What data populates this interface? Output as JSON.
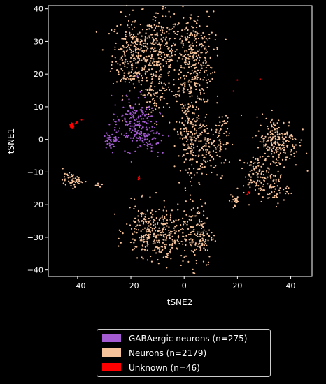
{
  "chart_data": {
    "type": "scatter",
    "xlabel": "tSNE2",
    "ylabel": "tSNE1",
    "xlim": [
      -51,
      48
    ],
    "ylim": [
      -42,
      41
    ],
    "x_ticks": [
      -40,
      -20,
      0,
      20,
      40
    ],
    "y_ticks": [
      -40,
      -30,
      -20,
      -10,
      0,
      10,
      20,
      30,
      40
    ],
    "grid": false,
    "legend_position": "bottom-center",
    "background": "#000000",
    "series": [
      {
        "name": "GABAergic neurons (n=275)",
        "color": "#a45bd1",
        "count": 275,
        "clusters": [
          {
            "cx": -19,
            "cy": 5,
            "sx": 4,
            "sy": 4,
            "n": 170
          },
          {
            "cx": -14,
            "cy": 1,
            "sx": 2.5,
            "sy": 3,
            "n": 60
          },
          {
            "cx": -27,
            "cy": 0,
            "sx": 1.5,
            "sy": 1.3,
            "n": 45
          }
        ]
      },
      {
        "name": "Neurons (n=2179)",
        "color": "#f6c29a",
        "count": 2179,
        "clusters": [
          {
            "cx": -19,
            "cy": 26,
            "sx": 4,
            "sy": 6,
            "n": 280
          },
          {
            "cx": -9,
            "cy": 26,
            "sx": 3.5,
            "sy": 6,
            "n": 230
          },
          {
            "cx": 3,
            "cy": 25,
            "sx": 4,
            "sy": 7,
            "n": 330
          },
          {
            "cx": 2,
            "cy": 2,
            "sx": 2.5,
            "sy": 8,
            "n": 200
          },
          {
            "cx": 9,
            "cy": -2,
            "sx": 2.5,
            "sy": 4,
            "n": 100
          },
          {
            "cx": 14,
            "cy": 0,
            "sx": 1.5,
            "sy": 5,
            "n": 60
          },
          {
            "cx": -11,
            "cy": 12,
            "sx": 2,
            "sy": 3,
            "n": 50
          },
          {
            "cx": -14,
            "cy": -28,
            "sx": 4,
            "sy": 4,
            "n": 180
          },
          {
            "cx": -7,
            "cy": -30,
            "sx": 3.5,
            "sy": 4,
            "n": 150
          },
          {
            "cx": 5,
            "cy": -29,
            "sx": 3,
            "sy": 5,
            "n": 150
          },
          {
            "cx": 35,
            "cy": -1,
            "sx": 4,
            "sy": 4,
            "n": 220
          },
          {
            "cx": 27,
            "cy": -11,
            "sx": 2.5,
            "sy": 3,
            "n": 90
          },
          {
            "cx": 34,
            "cy": -15,
            "sx": 2.5,
            "sy": 2.5,
            "n": 60
          },
          {
            "cx": -42,
            "cy": -12.5,
            "sx": 1.8,
            "sy": 1,
            "n": 50
          },
          {
            "cx": 19,
            "cy": -19,
            "sx": 1,
            "sy": 1.5,
            "n": 20
          },
          {
            "cx": -32,
            "cy": -14,
            "sx": 0.7,
            "sy": 0.5,
            "n": 9
          }
        ]
      },
      {
        "name": "Unknown (n=46)",
        "color": "#ff0000",
        "count": 46,
        "points": [
          [
            -42.5,
            4.5
          ],
          [
            -42.2,
            4.1
          ],
          [
            -42.0,
            3.8
          ],
          [
            -41.8,
            4.3
          ],
          [
            -42.6,
            4.0
          ],
          [
            -42.3,
            3.6
          ],
          [
            -41.9,
            4.6
          ],
          [
            -42.1,
            4.9
          ],
          [
            -42.4,
            3.9
          ],
          [
            -41.7,
            4.0
          ],
          [
            -40.5,
            5.0
          ],
          [
            -40.2,
            5.3
          ],
          [
            -38.5,
            6.0
          ],
          [
            -42.0,
            4.2
          ],
          [
            -42.2,
            3.5
          ],
          [
            -17.0,
            -11.5
          ],
          [
            -16.8,
            -12.0
          ],
          [
            -17.2,
            -12.3
          ],
          [
            20.0,
            18.2
          ],
          [
            28.5,
            18.5
          ],
          [
            18.5,
            14.8
          ],
          [
            24.0,
            -16.5
          ],
          [
            23.7,
            -16.9
          ],
          [
            24.3,
            -16.2
          ],
          [
            -42.4,
            4.4
          ],
          [
            -42.1,
            4.7
          ],
          [
            -41.6,
            4.2
          ],
          [
            -42.7,
            4.3
          ],
          [
            -42.0,
            3.4
          ],
          [
            -41.5,
            3.9
          ],
          [
            -42.8,
            4.6
          ],
          [
            -41.9,
            3.7
          ],
          [
            -42.3,
            5.0
          ],
          [
            -40.8,
            4.8
          ],
          [
            -17.1,
            -11.8
          ],
          [
            -16.9,
            -11.3
          ],
          [
            -42.5,
            3.7
          ],
          [
            -42.2,
            4.0
          ],
          [
            -41.8,
            4.5
          ],
          [
            -42.0,
            4.8
          ],
          [
            -42.6,
            4.2
          ],
          [
            -41.7,
            3.6
          ],
          [
            -42.4,
            4.1
          ],
          [
            -40.4,
            5.1
          ],
          [
            -42.1,
            3.9
          ],
          [
            -41.9,
            4.4
          ]
        ]
      }
    ]
  }
}
